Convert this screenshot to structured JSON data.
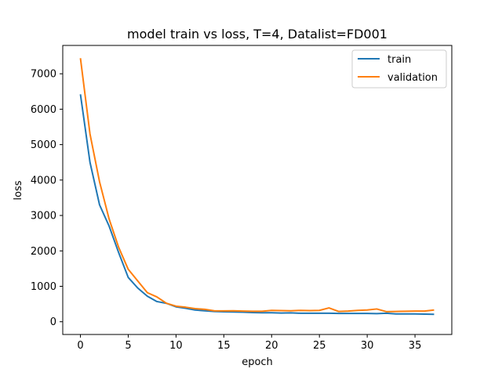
{
  "chart_data": {
    "type": "line",
    "title": "model train vs loss, T=4, Datalist=FD001",
    "xlabel": "epoch",
    "ylabel": "loss",
    "xlim": [
      -1.85,
      38.85
    ],
    "ylim": [
      -360,
      7800
    ],
    "xticks": [
      0,
      5,
      10,
      15,
      20,
      25,
      30,
      35
    ],
    "yticks": [
      0,
      1000,
      2000,
      3000,
      4000,
      5000,
      6000,
      7000
    ],
    "grid": false,
    "legend_position": "top-right",
    "x": [
      0,
      1,
      2,
      3,
      4,
      5,
      6,
      7,
      8,
      9,
      10,
      11,
      12,
      13,
      14,
      15,
      16,
      17,
      18,
      19,
      20,
      21,
      22,
      23,
      24,
      25,
      26,
      27,
      28,
      29,
      30,
      31,
      32,
      33,
      34,
      35,
      36,
      37
    ],
    "series": [
      {
        "name": "train",
        "color": "#1f77b4",
        "values": [
          6420,
          4500,
          3300,
          2700,
          1950,
          1250,
          950,
          720,
          570,
          520,
          420,
          380,
          330,
          310,
          290,
          280,
          275,
          270,
          260,
          255,
          255,
          245,
          250,
          240,
          240,
          240,
          240,
          235,
          235,
          235,
          235,
          230,
          240,
          220,
          220,
          220,
          215,
          210
        ]
      },
      {
        "name": "validation",
        "color": "#ff7f0e",
        "values": [
          7440,
          5300,
          3950,
          2900,
          2100,
          1480,
          1150,
          820,
          700,
          520,
          440,
          410,
          370,
          350,
          310,
          305,
          310,
          300,
          295,
          295,
          320,
          315,
          310,
          320,
          315,
          320,
          390,
          290,
          300,
          320,
          330,
          360,
          285,
          290,
          295,
          300,
          300,
          330
        ]
      }
    ]
  }
}
